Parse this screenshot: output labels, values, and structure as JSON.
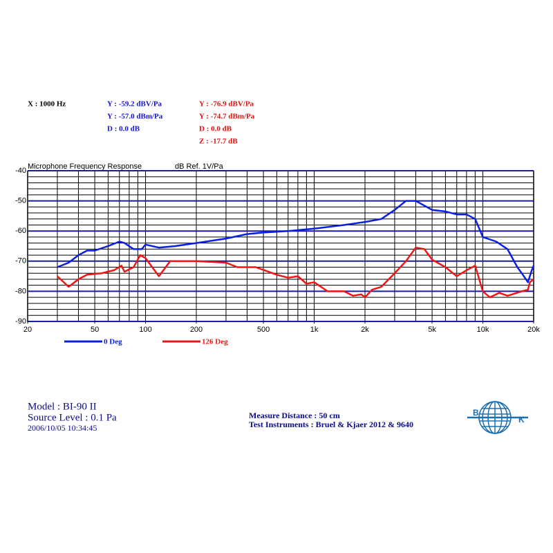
{
  "chart_data": {
    "type": "line",
    "title": "Microphone Frequency Response",
    "subtitle": "dB Ref. 1V/Pa",
    "log_x": true,
    "grid": true,
    "xlim": [
      20,
      20000
    ],
    "ylim": [
      -90,
      -40
    ],
    "xticks": [
      20,
      50,
      100,
      200,
      500,
      {
        "value": 1000,
        "label": "1k"
      },
      {
        "value": 2000,
        "label": "2k"
      },
      {
        "value": 5000,
        "label": "5k"
      },
      {
        "value": 10000,
        "label": "10k"
      },
      {
        "value": 20000,
        "label": "20k"
      }
    ],
    "yticks": [
      -40,
      -50,
      -60,
      -70,
      -80,
      -90
    ],
    "series": [
      {
        "name": "0 Deg",
        "color": "#0a1ee6",
        "x": [
          30,
          35,
          40,
          45,
          50,
          60,
          70,
          75,
          85,
          95,
          100,
          120,
          150,
          200,
          300,
          400,
          500,
          700,
          1000,
          1500,
          2000,
          2500,
          3000,
          3500,
          4000,
          5000,
          6000,
          7000,
          8000,
          9000,
          10000,
          12000,
          14000,
          16000,
          17000,
          18500,
          19500,
          20000
        ],
        "values": [
          -72,
          -70.5,
          -68,
          -66.5,
          -66.5,
          -65,
          -63.5,
          -64,
          -66,
          -66,
          -64.5,
          -65.5,
          -65,
          -64,
          -62.5,
          -61,
          -60.5,
          -60,
          -59.2,
          -58,
          -57,
          -56,
          -53,
          -50,
          -50,
          -53,
          -53.5,
          -54.5,
          -54.5,
          -56,
          -62,
          -63.5,
          -66,
          -72,
          -74,
          -77,
          -73,
          -71.5
        ]
      },
      {
        "name": "126 Deg",
        "color": "#f01414",
        "x": [
          30,
          35,
          40,
          45,
          55,
          65,
          72,
          75,
          85,
          93,
          100,
          120,
          140,
          200,
          300,
          350,
          450,
          600,
          700,
          800,
          900,
          1000,
          1200,
          1500,
          1700,
          1900,
          2000,
          2200,
          2500,
          3000,
          3500,
          4000,
          4500,
          5000,
          6000,
          7000,
          8000,
          9000,
          10000,
          11000,
          12500,
          14000,
          17000,
          18500,
          19000,
          20000
        ],
        "values": [
          -75,
          -78.5,
          -76,
          -74.5,
          -74,
          -73,
          -71.5,
          -73.5,
          -72,
          -68,
          -69,
          -75,
          -70,
          -70,
          -70.5,
          -72,
          -72,
          -74.5,
          -75.5,
          -75,
          -77.5,
          -77,
          -80,
          -80,
          -81.5,
          -81,
          -82,
          -79.5,
          -78.5,
          -74,
          -70,
          -65.5,
          -66,
          -69.5,
          -72,
          -75,
          -73,
          -71.5,
          -80,
          -82,
          -80.5,
          -81.5,
          -80,
          -79.5,
          -77,
          -76
        ]
      }
    ]
  },
  "readout": {
    "x": "X : 1000 Hz",
    "blue": [
      "Y : -59.2 dBV/Pa",
      "Y : -57.0 dBm/Pa",
      "D : 0.0 dB"
    ],
    "red": [
      "Y : -76.9 dBV/Pa",
      "Y : -74.7 dBm/Pa",
      "D : 0.0 dB",
      "Z : -17.7 dB"
    ]
  },
  "footer": {
    "model": "Model :  BI-90   II",
    "source_level": "Source Level : 0.1 Pa",
    "date": "2006/10/05 10:34:45",
    "distance": "Measure Distance : 50 cm",
    "instruments": "Test Instruments : Bruel & Kjaer 2012 & 9640",
    "logo_left": "B",
    "logo_right": "K"
  }
}
